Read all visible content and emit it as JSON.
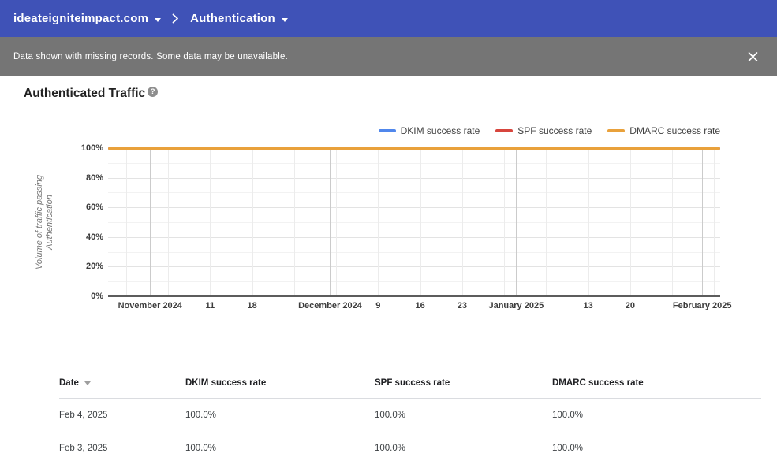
{
  "header": {
    "domain": "ideateigniteimpact.com",
    "section": "Authentication"
  },
  "banner": {
    "message": "Data shown with missing records. Some data may be unavailable."
  },
  "main": {
    "title": "Authenticated Traffic",
    "help_glyph": "?"
  },
  "colors": {
    "header_bg": "#3F52B7",
    "banner_bg": "#757575",
    "dkim": "#5087EC",
    "spf": "#D7453D",
    "dmarc": "#E9A13B"
  },
  "chart_data": {
    "type": "line",
    "title": "Authenticated Traffic",
    "ylabel": "Volume of traffic passing Authentication",
    "ylabel_lines": [
      "Volume of traffic passing",
      "Authentication"
    ],
    "ylim": [
      0,
      100
    ],
    "grid": true,
    "legend_position": "top-right",
    "y_ticks": [
      {
        "value": 0,
        "label": "0%"
      },
      {
        "value": 20,
        "label": "20%"
      },
      {
        "value": 40,
        "label": "40%"
      },
      {
        "value": 60,
        "label": "60%"
      },
      {
        "value": 80,
        "label": "80%"
      },
      {
        "value": 100,
        "label": "100%"
      }
    ],
    "y_minor_ticks": [
      10,
      30,
      50,
      70,
      90
    ],
    "x_axis": {
      "total_days": 102
    },
    "x_month_ticks": [
      {
        "day": 7,
        "label": "November 2024"
      },
      {
        "day": 37,
        "label": "December 2024"
      },
      {
        "day": 68,
        "label": "January 2025"
      },
      {
        "day": 99,
        "label": "February 2025"
      }
    ],
    "x_week_ticks": [
      {
        "day": 3
      },
      {
        "day": 10
      },
      {
        "day": 17,
        "label": "11"
      },
      {
        "day": 24,
        "label": "18"
      },
      {
        "day": 31
      },
      {
        "day": 38
      },
      {
        "day": 45,
        "label": "9"
      },
      {
        "day": 52,
        "label": "16"
      },
      {
        "day": 59,
        "label": "23"
      },
      {
        "day": 66
      },
      {
        "day": 73
      },
      {
        "day": 80,
        "label": "13"
      },
      {
        "day": 87,
        "label": "20"
      },
      {
        "day": 94
      },
      {
        "day": 101
      }
    ],
    "series": [
      {
        "name": "DKIM success rate",
        "color": "#5087EC",
        "constant_value": 100
      },
      {
        "name": "SPF success rate",
        "color": "#D7453D",
        "constant_value": 100
      },
      {
        "name": "DMARC success rate",
        "color": "#E9A13B",
        "constant_value": 100
      }
    ]
  },
  "table": {
    "columns": [
      {
        "label": "Date",
        "sortable": true,
        "sort": "desc"
      },
      {
        "label": "DKIM success rate"
      },
      {
        "label": "SPF success rate"
      },
      {
        "label": "DMARC success rate"
      }
    ],
    "rows": [
      [
        "Feb 4, 2025",
        "100.0%",
        "100.0%",
        "100.0%"
      ],
      [
        "Feb 3, 2025",
        "100.0%",
        "100.0%",
        "100.0%"
      ]
    ]
  }
}
